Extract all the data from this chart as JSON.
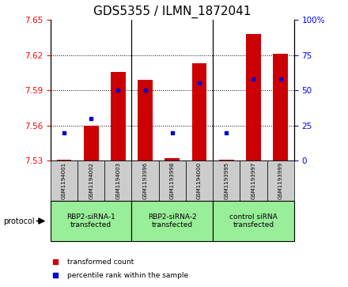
{
  "title": "GDS5355 / ILMN_1872041",
  "samples": [
    "GSM1194001",
    "GSM1194002",
    "GSM1194003",
    "GSM1193996",
    "GSM1193998",
    "GSM1194000",
    "GSM1193995",
    "GSM1193997",
    "GSM1193999"
  ],
  "groups": [
    {
      "label": "RBP2-siRNA-1\ntransfected",
      "indices": [
        0,
        1,
        2
      ]
    },
    {
      "label": "RBP2-siRNA-2\ntransfected",
      "indices": [
        3,
        4,
        5
      ]
    },
    {
      "label": "control siRNA\ntransfected",
      "indices": [
        6,
        7,
        8
      ]
    }
  ],
  "bar_values": [
    7.531,
    7.56,
    7.606,
    7.599,
    7.532,
    7.613,
    7.531,
    7.638,
    7.621
  ],
  "percentile_values": [
    20,
    30,
    50,
    50,
    20,
    55,
    20,
    58,
    58
  ],
  "bar_baseline": 7.53,
  "ylim": [
    7.53,
    7.65
  ],
  "yticks": [
    7.53,
    7.56,
    7.59,
    7.62,
    7.65
  ],
  "right_ylim": [
    0,
    100
  ],
  "right_yticks": [
    0,
    25,
    50,
    75,
    100
  ],
  "bar_color": "#cc0000",
  "dot_color": "#0000cc",
  "group_bg_color": "#99ee99",
  "sample_bg_color": "#cccccc",
  "protocol_label": "protocol",
  "legend_bar_label": "transformed count",
  "legend_dot_label": "percentile rank within the sample",
  "title_fontsize": 11,
  "tick_fontsize": 7.5,
  "sample_fontsize": 5.0,
  "group_fontsize": 6.5,
  "legend_fontsize": 6.5
}
